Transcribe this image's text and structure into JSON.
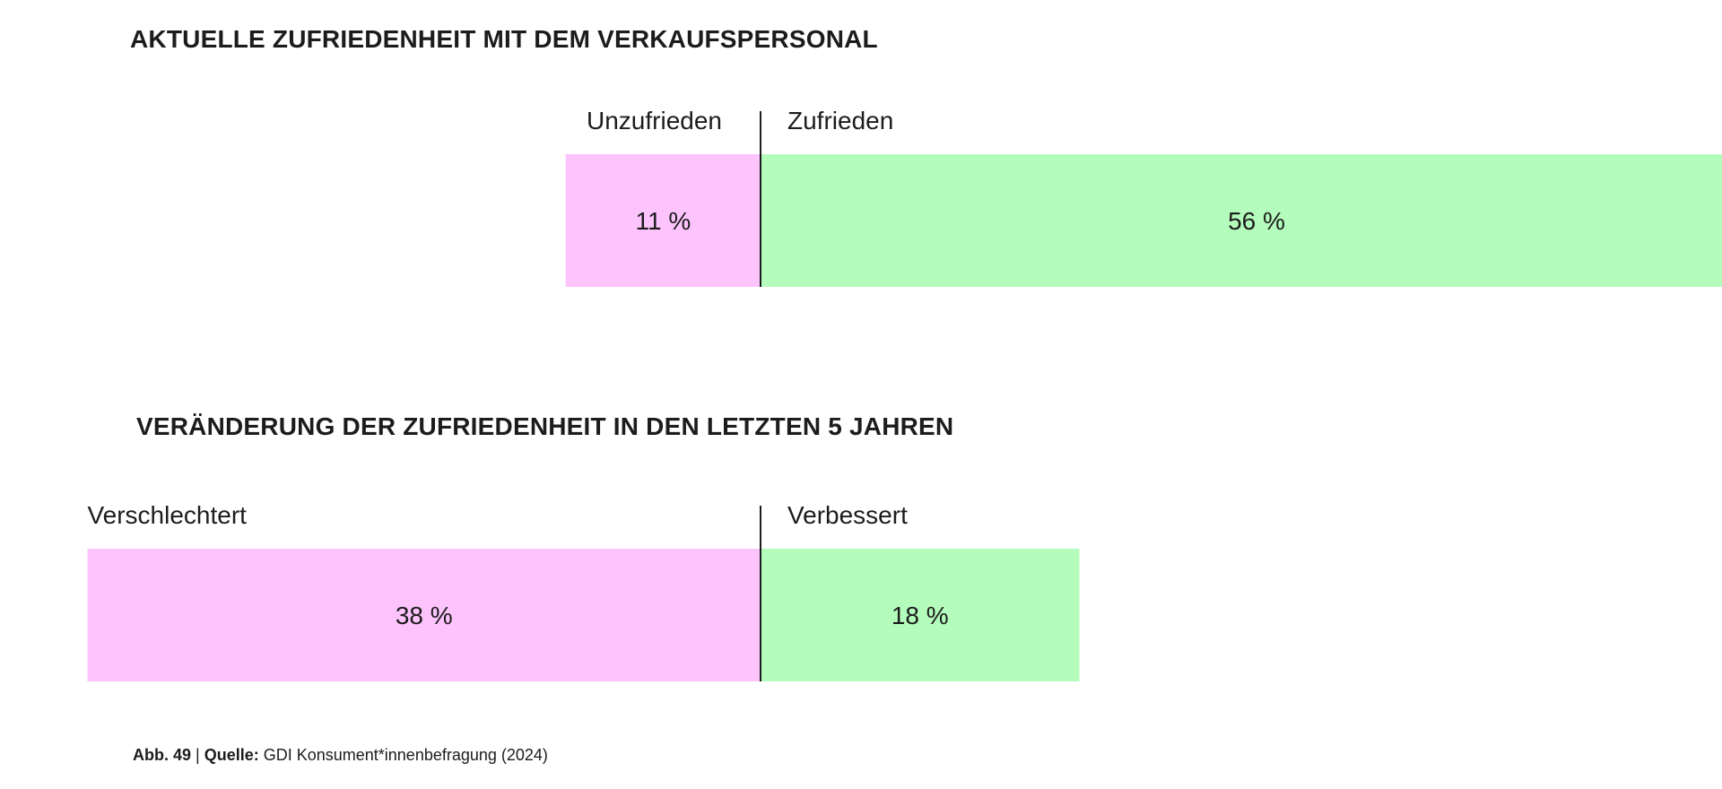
{
  "colors": {
    "negative": "#fcc3fc",
    "positive": "#b4fcbc",
    "divider": "#1c1c1c",
    "text": "#1c1c1c"
  },
  "chart_data": [
    {
      "type": "bar",
      "orientation": "diverging-horizontal",
      "title": "AKTUELLE ZUFRIEDENHEIT MIT DEM VERKAUFSPERSONAL",
      "unit": "%",
      "series": [
        {
          "name": "Unzufrieden",
          "side": "negative",
          "value": 11,
          "label": "11 %"
        },
        {
          "name": "Zufrieden",
          "side": "positive",
          "value": 56,
          "label": "56 %"
        }
      ]
    },
    {
      "type": "bar",
      "orientation": "diverging-horizontal",
      "title": "VERÄNDERUNG DER ZUFRIEDENHEIT IN DEN LETZTEN 5 JAHREN",
      "unit": "%",
      "series": [
        {
          "name": "Verschlechtert",
          "side": "negative",
          "value": 38,
          "label": "38 %"
        },
        {
          "name": "Verbessert",
          "side": "positive",
          "value": 18,
          "label": "18 %"
        }
      ]
    }
  ],
  "caption": {
    "figure": "Abb. 49",
    "separator": " | ",
    "source_label": "Quelle:",
    "source_text": " GDI Konsument*innenbefragung (2024)"
  }
}
